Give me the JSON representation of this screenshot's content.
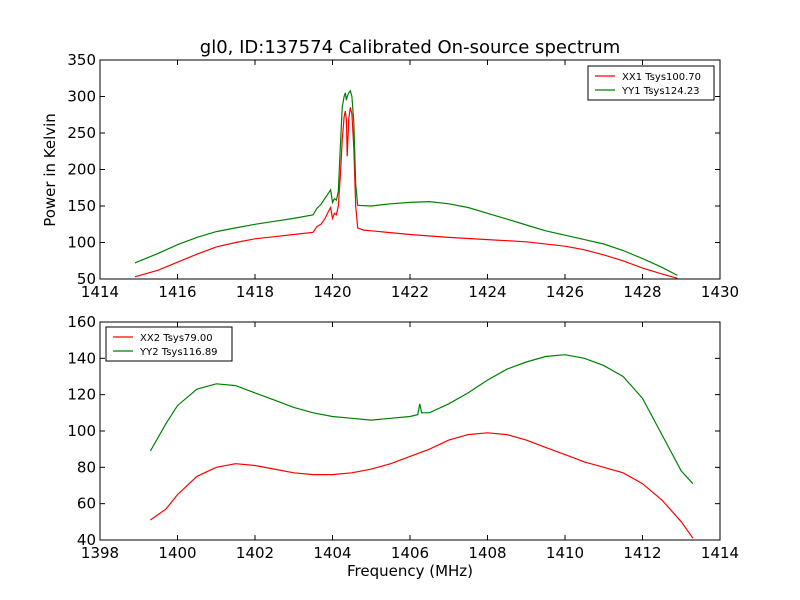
{
  "figure_title": "gl0, ID:137574 Calibrated On-source spectrum",
  "xlabel_shared": "Frequency (MHz)",
  "chart_data": [
    {
      "type": "line",
      "title": "gl0, ID:137574 Calibrated On-source spectrum",
      "xlabel": "",
      "ylabel": "Power in Kelvin",
      "xlim": [
        1414,
        1430
      ],
      "ylim": [
        50,
        350
      ],
      "xticks": [
        1414,
        1416,
        1418,
        1420,
        1422,
        1424,
        1426,
        1428,
        1430
      ],
      "yticks": [
        50,
        100,
        150,
        200,
        250,
        300,
        350
      ],
      "grid": false,
      "legend": "top-right",
      "series": [
        {
          "name": "XX1 Tsys100.70",
          "color": "#ff0000",
          "points": [
            [
              1414.9,
              53
            ],
            [
              1415.5,
              62
            ],
            [
              1416.0,
              73
            ],
            [
              1416.5,
              84
            ],
            [
              1417.0,
              94
            ],
            [
              1417.5,
              100
            ],
            [
              1418.0,
              105
            ],
            [
              1418.5,
              108
            ],
            [
              1419.0,
              111
            ],
            [
              1419.5,
              114
            ],
            [
              1419.6,
              122
            ],
            [
              1419.7,
              125
            ],
            [
              1419.8,
              132
            ],
            [
              1419.9,
              143
            ],
            [
              1419.95,
              148
            ],
            [
              1420.0,
              133
            ],
            [
              1420.05,
              140
            ],
            [
              1420.1,
              138
            ],
            [
              1420.15,
              150
            ],
            [
              1420.2,
              190
            ],
            [
              1420.25,
              240
            ],
            [
              1420.3,
              272
            ],
            [
              1420.33,
              280
            ],
            [
              1420.36,
              268
            ],
            [
              1420.38,
              218
            ],
            [
              1420.42,
              270
            ],
            [
              1420.46,
              285
            ],
            [
              1420.5,
              276
            ],
            [
              1420.55,
              230
            ],
            [
              1420.6,
              150
            ],
            [
              1420.65,
              120
            ],
            [
              1420.8,
              117
            ],
            [
              1421.0,
              116
            ],
            [
              1422.0,
              111
            ],
            [
              1423.0,
              107
            ],
            [
              1424.0,
              104
            ],
            [
              1425.0,
              101
            ],
            [
              1426.0,
              95
            ],
            [
              1426.5,
              90
            ],
            [
              1427.0,
              83
            ],
            [
              1427.5,
              75
            ],
            [
              1428.0,
              65
            ],
            [
              1428.5,
              57
            ],
            [
              1428.9,
              51
            ]
          ]
        },
        {
          "name": "YY1 Tsys124.23",
          "color": "#008000",
          "points": [
            [
              1414.9,
              72
            ],
            [
              1415.5,
              85
            ],
            [
              1416.0,
              97
            ],
            [
              1416.5,
              107
            ],
            [
              1417.0,
              115
            ],
            [
              1417.5,
              120
            ],
            [
              1418.0,
              125
            ],
            [
              1418.5,
              129
            ],
            [
              1419.0,
              133
            ],
            [
              1419.5,
              138
            ],
            [
              1419.6,
              147
            ],
            [
              1419.7,
              152
            ],
            [
              1419.8,
              160
            ],
            [
              1419.9,
              168
            ],
            [
              1419.95,
              172
            ],
            [
              1420.0,
              155
            ],
            [
              1420.05,
              160
            ],
            [
              1420.1,
              158
            ],
            [
              1420.15,
              170
            ],
            [
              1420.2,
              230
            ],
            [
              1420.25,
              285
            ],
            [
              1420.3,
              300
            ],
            [
              1420.33,
              305
            ],
            [
              1420.36,
              295
            ],
            [
              1420.38,
              300
            ],
            [
              1420.42,
              305
            ],
            [
              1420.46,
              308
            ],
            [
              1420.5,
              300
            ],
            [
              1420.55,
              265
            ],
            [
              1420.6,
              180
            ],
            [
              1420.65,
              151
            ],
            [
              1421.0,
              150
            ],
            [
              1421.5,
              153
            ],
            [
              1422.0,
              155
            ],
            [
              1422.5,
              156
            ],
            [
              1423.0,
              153
            ],
            [
              1423.5,
              148
            ],
            [
              1424.0,
              140
            ],
            [
              1424.5,
              132
            ],
            [
              1425.0,
              124
            ],
            [
              1425.5,
              116
            ],
            [
              1426.0,
              110
            ],
            [
              1426.5,
              104
            ],
            [
              1427.0,
              98
            ],
            [
              1427.5,
              89
            ],
            [
              1428.0,
              78
            ],
            [
              1428.5,
              66
            ],
            [
              1428.9,
              55
            ]
          ]
        }
      ]
    },
    {
      "type": "line",
      "title": "",
      "xlabel": "Frequency (MHz)",
      "ylabel": "",
      "xlim": [
        1398,
        1414
      ],
      "ylim": [
        40,
        160
      ],
      "xticks": [
        1398,
        1400,
        1402,
        1404,
        1406,
        1408,
        1410,
        1412,
        1414
      ],
      "yticks": [
        40,
        60,
        80,
        100,
        120,
        140,
        160
      ],
      "grid": false,
      "legend": "top-left",
      "series": [
        {
          "name": "XX2 Tsys79.00",
          "color": "#ff0000",
          "points": [
            [
              1399.3,
              51
            ],
            [
              1399.7,
              57
            ],
            [
              1400.0,
              65
            ],
            [
              1400.5,
              75
            ],
            [
              1401.0,
              80
            ],
            [
              1401.5,
              82
            ],
            [
              1402.0,
              81
            ],
            [
              1402.5,
              79
            ],
            [
              1403.0,
              77
            ],
            [
              1403.5,
              76
            ],
            [
              1404.0,
              76
            ],
            [
              1404.5,
              77
            ],
            [
              1405.0,
              79
            ],
            [
              1405.5,
              82
            ],
            [
              1406.0,
              86
            ],
            [
              1406.5,
              90
            ],
            [
              1407.0,
              95
            ],
            [
              1407.5,
              98
            ],
            [
              1408.0,
              99
            ],
            [
              1408.5,
              98
            ],
            [
              1409.0,
              95
            ],
            [
              1409.5,
              91
            ],
            [
              1410.0,
              87
            ],
            [
              1410.5,
              83
            ],
            [
              1411.0,
              80
            ],
            [
              1411.5,
              77
            ],
            [
              1412.0,
              71
            ],
            [
              1412.5,
              62
            ],
            [
              1413.0,
              50
            ],
            [
              1413.3,
              41
            ]
          ]
        },
        {
          "name": "YY2 Tsys116.89",
          "color": "#008000",
          "points": [
            [
              1399.3,
              89
            ],
            [
              1399.7,
              104
            ],
            [
              1400.0,
              114
            ],
            [
              1400.5,
              123
            ],
            [
              1401.0,
              126
            ],
            [
              1401.5,
              125
            ],
            [
              1402.0,
              121
            ],
            [
              1402.5,
              117
            ],
            [
              1403.0,
              113
            ],
            [
              1403.5,
              110
            ],
            [
              1404.0,
              108
            ],
            [
              1404.5,
              107
            ],
            [
              1405.0,
              106
            ],
            [
              1405.5,
              107
            ],
            [
              1406.0,
              108
            ],
            [
              1406.2,
              109
            ],
            [
              1406.25,
              115
            ],
            [
              1406.3,
              110
            ],
            [
              1406.5,
              110
            ],
            [
              1407.0,
              115
            ],
            [
              1407.5,
              121
            ],
            [
              1408.0,
              128
            ],
            [
              1408.5,
              134
            ],
            [
              1409.0,
              138
            ],
            [
              1409.5,
              141
            ],
            [
              1410.0,
              142
            ],
            [
              1410.5,
              140
            ],
            [
              1411.0,
              136
            ],
            [
              1411.5,
              130
            ],
            [
              1412.0,
              118
            ],
            [
              1412.5,
              98
            ],
            [
              1413.0,
              78
            ],
            [
              1413.3,
              71
            ]
          ]
        }
      ]
    }
  ]
}
